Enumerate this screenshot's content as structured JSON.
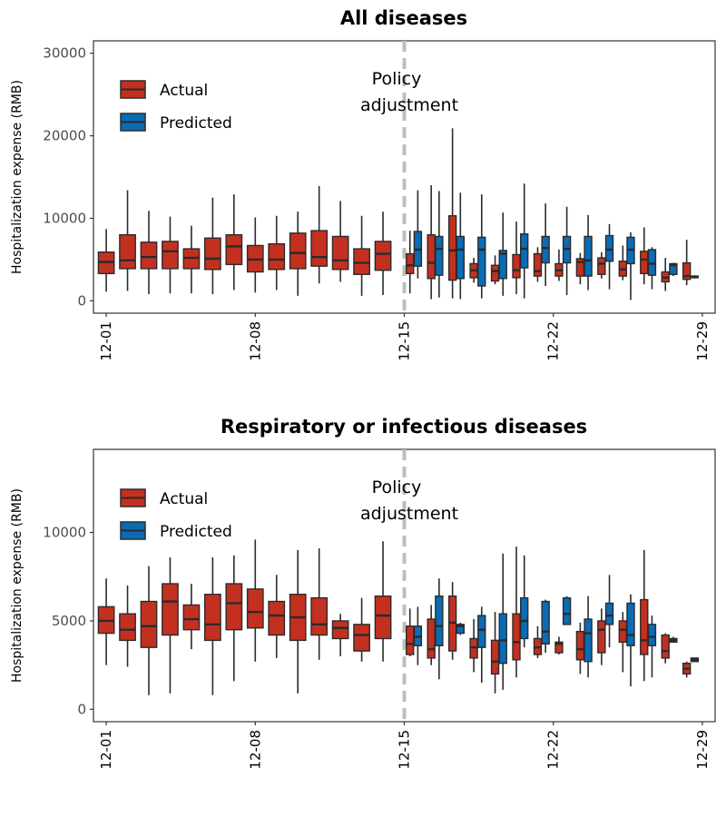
{
  "colors": {
    "actual": "#c43020",
    "predicted": "#0a6cb5",
    "outline": "#2b2b2b",
    "policy_line": "#bdbdbd"
  },
  "chart_data": [
    {
      "type": "box",
      "title": "All diseases",
      "ylabel": "Hospitalization expense (RMB)",
      "xlabel": "",
      "ylim": [
        -1500,
        31500
      ],
      "yticks": [
        0,
        10000,
        20000,
        30000
      ],
      "x_tick_labels": [
        "12-01",
        "12-08",
        "12-15",
        "12-22",
        "12-29"
      ],
      "x_tick_days": [
        1,
        8,
        15,
        22,
        29
      ],
      "xlim": [
        0.4,
        29.6
      ],
      "legend": {
        "position": "top-left",
        "entries": [
          "Actual",
          "Predicted"
        ]
      },
      "annotation": {
        "lines": [
          "Policy",
          "adjustment"
        ],
        "x": 15.0
      },
      "series": [
        {
          "name": "Actual",
          "boxes": [
            {
              "day": 1,
              "min": 1100,
              "q1": 3300,
              "median": 4700,
              "q3": 5900,
              "max": 8700
            },
            {
              "day": 2,
              "min": 1200,
              "q1": 3900,
              "median": 4900,
              "q3": 8000,
              "max": 13400
            },
            {
              "day": 3,
              "min": 800,
              "q1": 3900,
              "median": 5300,
              "q3": 7100,
              "max": 10900
            },
            {
              "day": 4,
              "min": 900,
              "q1": 3900,
              "median": 6000,
              "q3": 7200,
              "max": 10200
            },
            {
              "day": 5,
              "min": 900,
              "q1": 3900,
              "median": 5200,
              "q3": 6300,
              "max": 9100
            },
            {
              "day": 6,
              "min": 800,
              "q1": 3800,
              "median": 5100,
              "q3": 7600,
              "max": 12500
            },
            {
              "day": 7,
              "min": 1300,
              "q1": 4400,
              "median": 6600,
              "q3": 8000,
              "max": 12900
            },
            {
              "day": 8,
              "min": 1000,
              "q1": 3500,
              "median": 5000,
              "q3": 6700,
              "max": 10100
            },
            {
              "day": 9,
              "min": 1300,
              "q1": 3800,
              "median": 5000,
              "q3": 6900,
              "max": 10300
            },
            {
              "day": 10,
              "min": 600,
              "q1": 3900,
              "median": 5800,
              "q3": 8200,
              "max": 10800
            },
            {
              "day": 11,
              "min": 2100,
              "q1": 4200,
              "median": 5300,
              "q3": 8500,
              "max": 13900
            },
            {
              "day": 12,
              "min": 2300,
              "q1": 3800,
              "median": 4900,
              "q3": 7800,
              "max": 12100
            },
            {
              "day": 13,
              "min": 600,
              "q1": 3200,
              "median": 4600,
              "q3": 6300,
              "max": 10300
            },
            {
              "day": 14,
              "min": 700,
              "q1": 3700,
              "median": 5700,
              "q3": 7200,
              "max": 10800
            },
            {
              "day": 15,
              "min": 900,
              "q1": 3300,
              "median": 4300,
              "q3": 5700,
              "max": 8500
            },
            {
              "day": 16,
              "min": 200,
              "q1": 2700,
              "median": 4600,
              "q3": 8000,
              "max": 14000
            },
            {
              "day": 17,
              "min": 300,
              "q1": 2500,
              "median": 6100,
              "q3": 10300,
              "max": 20900
            },
            {
              "day": 18,
              "min": 2200,
              "q1": 2800,
              "median": 3700,
              "q3": 4500,
              "max": 5200
            },
            {
              "day": 19,
              "min": 2000,
              "q1": 2400,
              "median": 3600,
              "q3": 4300,
              "max": 5500
            },
            {
              "day": 20,
              "min": 800,
              "q1": 2800,
              "median": 3700,
              "q3": 5600,
              "max": 9600
            },
            {
              "day": 21,
              "min": 2300,
              "q1": 3000,
              "median": 3600,
              "q3": 5700,
              "max": 6500
            },
            {
              "day": 22,
              "min": 2400,
              "q1": 3000,
              "median": 3700,
              "q3": 4500,
              "max": 6200
            },
            {
              "day": 23,
              "min": 2000,
              "q1": 3000,
              "median": 4700,
              "q3": 5100,
              "max": 5800
            },
            {
              "day": 24,
              "min": 2700,
              "q1": 3200,
              "median": 4500,
              "q3": 5200,
              "max": 5900
            },
            {
              "day": 25,
              "min": 2500,
              "q1": 3000,
              "median": 3800,
              "q3": 4800,
              "max": 6700
            },
            {
              "day": 26,
              "min": 2000,
              "q1": 3300,
              "median": 5000,
              "q3": 6000,
              "max": 8900
            },
            {
              "day": 27,
              "min": 1200,
              "q1": 2300,
              "median": 2800,
              "q3": 3500,
              "max": 5200
            },
            {
              "day": 28,
              "min": 1900,
              "q1": 2600,
              "median": 3000,
              "q3": 4600,
              "max": 7400
            }
          ]
        },
        {
          "name": "Predicted",
          "boxes": [
            {
              "day": 15,
              "min": 2700,
              "q1": 4200,
              "median": 6200,
              "q3": 8400,
              "max": 13400
            },
            {
              "day": 16,
              "min": 400,
              "q1": 3100,
              "median": 6300,
              "q3": 7800,
              "max": 13300
            },
            {
              "day": 17,
              "min": 200,
              "q1": 2700,
              "median": 6200,
              "q3": 7800,
              "max": 13100
            },
            {
              "day": 18,
              "min": 300,
              "q1": 1800,
              "median": 6200,
              "q3": 7700,
              "max": 12900
            },
            {
              "day": 19,
              "min": 600,
              "q1": 2700,
              "median": 5700,
              "q3": 6100,
              "max": 10700
            },
            {
              "day": 20,
              "min": 300,
              "q1": 4000,
              "median": 6300,
              "q3": 8100,
              "max": 14200
            },
            {
              "day": 21,
              "min": 1800,
              "q1": 4600,
              "median": 6400,
              "q3": 7800,
              "max": 11800
            },
            {
              "day": 22,
              "min": 700,
              "q1": 4600,
              "median": 6300,
              "q3": 7800,
              "max": 11400
            },
            {
              "day": 23,
              "min": 1300,
              "q1": 3000,
              "median": 4900,
              "q3": 7800,
              "max": 10400
            },
            {
              "day": 24,
              "min": 1400,
              "q1": 4800,
              "median": 6200,
              "q3": 7900,
              "max": 9300
            },
            {
              "day": 25,
              "min": 100,
              "q1": 4500,
              "median": 6200,
              "q3": 7700,
              "max": 8300
            },
            {
              "day": 26,
              "min": 1400,
              "q1": 3100,
              "median": 4500,
              "q3": 6200,
              "max": 6500
            },
            {
              "day": 27,
              "min": 3000,
              "q1": 3200,
              "median": 4300,
              "q3": 4500,
              "max": 4600
            },
            {
              "day": 28,
              "min": 2700,
              "q1": 2800,
              "median": 2900,
              "q3": 3000,
              "max": 3100
            }
          ]
        }
      ]
    },
    {
      "type": "box",
      "title": "Respiratory or infectious diseases",
      "ylabel": "Hospitalization expense (RMB)",
      "xlabel": "",
      "ylim": [
        -700,
        14700
      ],
      "yticks": [
        0,
        5000,
        10000
      ],
      "x_tick_labels": [
        "12-01",
        "12-08",
        "12-15",
        "12-22",
        "12-29"
      ],
      "x_tick_days": [
        1,
        8,
        15,
        22,
        29
      ],
      "xlim": [
        0.4,
        29.6
      ],
      "legend": {
        "position": "top-left",
        "entries": [
          "Actual",
          "Predicted"
        ]
      },
      "annotation": {
        "lines": [
          "Policy",
          "adjustment"
        ],
        "x": 15.0
      },
      "series": [
        {
          "name": "Actual",
          "boxes": [
            {
              "day": 1,
              "min": 2500,
              "q1": 4300,
              "median": 5000,
              "q3": 5800,
              "max": 7400
            },
            {
              "day": 2,
              "min": 2400,
              "q1": 3900,
              "median": 4500,
              "q3": 5400,
              "max": 7000
            },
            {
              "day": 3,
              "min": 800,
              "q1": 3500,
              "median": 4700,
              "q3": 6100,
              "max": 8100
            },
            {
              "day": 4,
              "min": 900,
              "q1": 4200,
              "median": 6100,
              "q3": 7100,
              "max": 8600
            },
            {
              "day": 5,
              "min": 3400,
              "q1": 4500,
              "median": 5100,
              "q3": 5900,
              "max": 7100
            },
            {
              "day": 6,
              "min": 800,
              "q1": 3900,
              "median": 4800,
              "q3": 6500,
              "max": 8600
            },
            {
              "day": 7,
              "min": 1600,
              "q1": 4500,
              "median": 6000,
              "q3": 7100,
              "max": 8700
            },
            {
              "day": 8,
              "min": 2700,
              "q1": 4600,
              "median": 5500,
              "q3": 6800,
              "max": 9600
            },
            {
              "day": 9,
              "min": 2900,
              "q1": 4200,
              "median": 5300,
              "q3": 6100,
              "max": 7600
            },
            {
              "day": 10,
              "min": 900,
              "q1": 3900,
              "median": 5200,
              "q3": 6500,
              "max": 9000
            },
            {
              "day": 11,
              "min": 2800,
              "q1": 4200,
              "median": 4800,
              "q3": 6300,
              "max": 9100
            },
            {
              "day": 12,
              "min": 3000,
              "q1": 4000,
              "median": 4600,
              "q3": 5000,
              "max": 5400
            },
            {
              "day": 13,
              "min": 2700,
              "q1": 3300,
              "median": 4200,
              "q3": 4800,
              "max": 6300
            },
            {
              "day": 14,
              "min": 2700,
              "q1": 4000,
              "median": 5300,
              "q3": 6400,
              "max": 9500
            },
            {
              "day": 15,
              "min": 3000,
              "q1": 3100,
              "median": 3700,
              "q3": 4700,
              "max": 5700
            },
            {
              "day": 16,
              "min": 2500,
              "q1": 2900,
              "median": 3400,
              "q3": 5100,
              "max": 5900
            },
            {
              "day": 17,
              "min": 2800,
              "q1": 3300,
              "median": 4900,
              "q3": 6400,
              "max": 7200
            },
            {
              "day": 18,
              "min": 2100,
              "q1": 2900,
              "median": 3500,
              "q3": 4000,
              "max": 5100
            },
            {
              "day": 19,
              "min": 900,
              "q1": 2000,
              "median": 2700,
              "q3": 3900,
              "max": 5500
            },
            {
              "day": 20,
              "min": 1800,
              "q1": 2800,
              "median": 3800,
              "q3": 5400,
              "max": 9200
            },
            {
              "day": 21,
              "min": 2900,
              "q1": 3100,
              "median": 3500,
              "q3": 4000,
              "max": 4700
            },
            {
              "day": 22,
              "min": 3100,
              "q1": 3200,
              "median": 3700,
              "q3": 3800,
              "max": 4100
            },
            {
              "day": 23,
              "min": 2000,
              "q1": 2800,
              "median": 3400,
              "q3": 4400,
              "max": 4900
            },
            {
              "day": 24,
              "min": 2500,
              "q1": 3200,
              "median": 4500,
              "q3": 5000,
              "max": 5700
            },
            {
              "day": 25,
              "min": 2100,
              "q1": 3800,
              "median": 4500,
              "q3": 5000,
              "max": 5500
            },
            {
              "day": 26,
              "min": 1600,
              "q1": 3100,
              "median": 3900,
              "q3": 6200,
              "max": 9000
            },
            {
              "day": 27,
              "min": 2600,
              "q1": 2900,
              "median": 3300,
              "q3": 4200,
              "max": 4300
            },
            {
              "day": 28,
              "min": 1800,
              "q1": 2000,
              "median": 2300,
              "q3": 2600,
              "max": 2700
            }
          ]
        },
        {
          "name": "Predicted",
          "boxes": [
            {
              "day": 15,
              "min": 2500,
              "q1": 3600,
              "median": 4100,
              "q3": 4700,
              "max": 5800
            },
            {
              "day": 16,
              "min": 1700,
              "q1": 3600,
              "median": 4700,
              "q3": 6400,
              "max": 7400
            },
            {
              "day": 17,
              "min": 4200,
              "q1": 4300,
              "median": 4700,
              "q3": 4800,
              "max": 4900
            },
            {
              "day": 18,
              "min": 1500,
              "q1": 3500,
              "median": 4500,
              "q3": 5300,
              "max": 5800
            },
            {
              "day": 19,
              "min": 1100,
              "q1": 2600,
              "median": 3900,
              "q3": 5400,
              "max": 8800
            },
            {
              "day": 20,
              "min": 3500,
              "q1": 4000,
              "median": 5000,
              "q3": 6300,
              "max": 8700
            },
            {
              "day": 21,
              "min": 3200,
              "q1": 3700,
              "median": 4400,
              "q3": 6100,
              "max": 6200
            },
            {
              "day": 22,
              "min": 4800,
              "q1": 4800,
              "median": 5400,
              "q3": 6300,
              "max": 6400
            },
            {
              "day": 23,
              "min": 1800,
              "q1": 2700,
              "median": 4300,
              "q3": 5100,
              "max": 6400
            },
            {
              "day": 24,
              "min": 3500,
              "q1": 4800,
              "median": 5300,
              "q3": 6000,
              "max": 7600
            },
            {
              "day": 25,
              "min": 1300,
              "q1": 3600,
              "median": 4200,
              "q3": 6000,
              "max": 6500
            },
            {
              "day": 26,
              "min": 1800,
              "q1": 3600,
              "median": 4100,
              "q3": 4800,
              "max": 5300
            },
            {
              "day": 27,
              "min": 3800,
              "q1": 3800,
              "median": 3900,
              "q3": 4000,
              "max": 4100
            },
            {
              "day": 28,
              "min": 2700,
              "q1": 2700,
              "median": 2800,
              "q3": 2900,
              "max": 2900
            }
          ]
        }
      ]
    }
  ]
}
